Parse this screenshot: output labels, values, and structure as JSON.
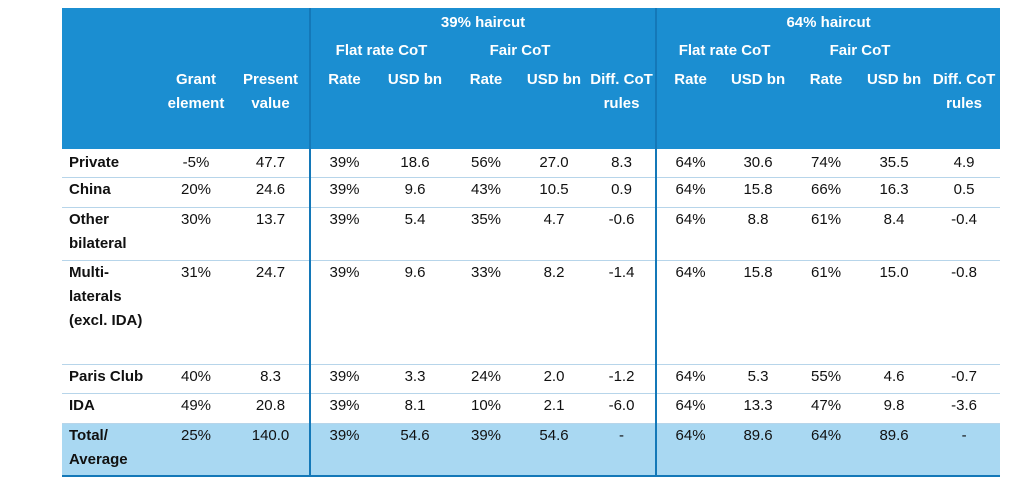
{
  "header": {
    "group_1": "39% haircut",
    "group_2": "64% haircut",
    "flat_rate": "Flat rate CoT",
    "fair": "Fair CoT",
    "grant_element": "Grant element",
    "present_value": "Present value",
    "rate": "Rate",
    "usd_bn": "USD bn",
    "diff": "Diff. CoT rules"
  },
  "rows": [
    {
      "label": "Private",
      "grant": "-5%",
      "pv": "47.7",
      "a_flat_rate": "39%",
      "a_flat_usd": "18.6",
      "a_fair_rate": "56%",
      "a_fair_usd": "27.0",
      "a_diff": "8.3",
      "b_flat_rate": "64%",
      "b_flat_usd": "30.6",
      "b_fair_rate": "74%",
      "b_fair_usd": "35.5",
      "b_diff": "4.9"
    },
    {
      "label": "China",
      "grant": "20%",
      "pv": "24.6",
      "a_flat_rate": "39%",
      "a_flat_usd": "9.6",
      "a_fair_rate": "43%",
      "a_fair_usd": "10.5",
      "a_diff": "0.9",
      "b_flat_rate": "64%",
      "b_flat_usd": "15.8",
      "b_fair_rate": "66%",
      "b_fair_usd": "16.3",
      "b_diff": "0.5"
    },
    {
      "label": "Other bilateral",
      "grant": "30%",
      "pv": "13.7",
      "a_flat_rate": "39%",
      "a_flat_usd": "5.4",
      "a_fair_rate": "35%",
      "a_fair_usd": "4.7",
      "a_diff": "-0.6",
      "b_flat_rate": "64%",
      "b_flat_usd": "8.8",
      "b_fair_rate": "61%",
      "b_fair_usd": "8.4",
      "b_diff": "-0.4"
    },
    {
      "label": "Multi-laterals (excl. IDA)",
      "grant": "31%",
      "pv": "24.7",
      "a_flat_rate": "39%",
      "a_flat_usd": "9.6",
      "a_fair_rate": "33%",
      "a_fair_usd": "8.2",
      "a_diff": "-1.4",
      "b_flat_rate": "64%",
      "b_flat_usd": "15.8",
      "b_fair_rate": "61%",
      "b_fair_usd": "15.0",
      "b_diff": "-0.8"
    },
    {
      "label": "Paris Club",
      "grant": "40%",
      "pv": "8.3",
      "a_flat_rate": "39%",
      "a_flat_usd": "3.3",
      "a_fair_rate": "24%",
      "a_fair_usd": "2.0",
      "a_diff": "-1.2",
      "b_flat_rate": "64%",
      "b_flat_usd": "5.3",
      "b_fair_rate": "55%",
      "b_fair_usd": "4.6",
      "b_diff": "-0.7"
    },
    {
      "label": "IDA",
      "grant": "49%",
      "pv": "20.8",
      "a_flat_rate": "39%",
      "a_flat_usd": "8.1",
      "a_fair_rate": "10%",
      "a_fair_usd": "2.1",
      "a_diff": "-6.0",
      "b_flat_rate": "64%",
      "b_flat_usd": "13.3",
      "b_fair_rate": "47%",
      "b_fair_usd": "9.8",
      "b_diff": "-3.6"
    },
    {
      "label": "Total/ Average",
      "grant": "25%",
      "pv": "140.0",
      "a_flat_rate": "39%",
      "a_flat_usd": "54.6",
      "a_fair_rate": "39%",
      "a_fair_usd": "54.6",
      "a_diff": "-",
      "b_flat_rate": "64%",
      "b_flat_usd": "89.6",
      "b_fair_rate": "64%",
      "b_fair_usd": "89.6",
      "b_diff": "-"
    }
  ],
  "colors": {
    "header_bg": "#1b8ed1",
    "total_bg": "#a9d8f2",
    "divider": "#1478b8"
  }
}
